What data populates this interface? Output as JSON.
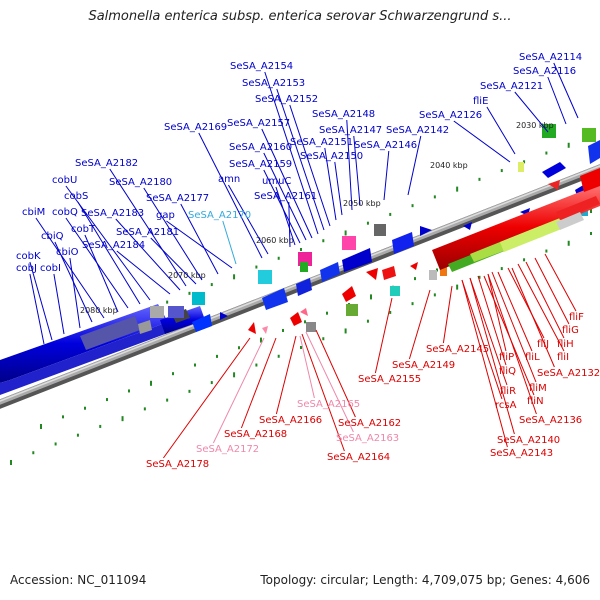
{
  "title": "Salmonella enterica subsp. enterica serovar Schwarzengrund s...",
  "footer": {
    "accession": "Accession: NC_011094",
    "stats": "Topology: circular; Length: 4,709,075 bp; Genes: 4,606"
  },
  "colors": {
    "forward_label": "#0000cc",
    "forward_label_light": "#33aadd",
    "reverse_label": "#dd0000",
    "reverse_label_light": "#ee88aa",
    "backbone": "#888888",
    "tick": "#228822"
  },
  "kbp_labels": [
    "2030 kbp",
    "2040 kbp",
    "2050 kbp",
    "2060 kbp",
    "2070 kbp",
    "2080 kbp"
  ],
  "forward_labels": [
    "SeSA_A2114",
    "SeSA_A2116",
    "SeSA_A2121",
    "fliE",
    "SeSA_A2126",
    "SeSA_A2142",
    "SeSA_A2146",
    "SeSA_A2147",
    "SeSA_A2148",
    "SeSA_A2150",
    "SeSA_A2151",
    "SeSA_A2152",
    "SeSA_A2153",
    "SeSA_A2154",
    "SeSA_A2157",
    "SeSA_A2160",
    "SeSA_A2159",
    "umuC",
    "SeSA_A2161",
    "amn",
    "SeSA_A2169",
    "SeSA_A2170",
    "gap",
    "SeSA_A2177",
    "SeSA_A2180",
    "SeSA_A2181",
    "SeSA_A2182",
    "SeSA_A2183",
    "SeSA_A2184",
    "cobU",
    "cobS",
    "cobQ",
    "cobT",
    "cbiM",
    "cbiQ",
    "cbiO",
    "cobK",
    "cobJ",
    "cobI"
  ],
  "reverse_labels": [
    "fliF",
    "fliG",
    "fliH",
    "fliI",
    "fliJ",
    "fliL",
    "fliP",
    "fliQ",
    "fliR",
    "fliM",
    "fliN",
    "rcsA",
    "SeSA_A2132",
    "SeSA_A2136",
    "SeSA_A2140",
    "SeSA_A2143",
    "SeSA_A2145",
    "SeSA_A2149",
    "SeSA_A2155",
    "SeSA_A2162",
    "SeSA_A2163",
    "SeSA_A2164",
    "SeSA_A2165",
    "SeSA_A2166",
    "SeSA_A2168",
    "SeSA_A2172",
    "SeSA_A2178"
  ]
}
